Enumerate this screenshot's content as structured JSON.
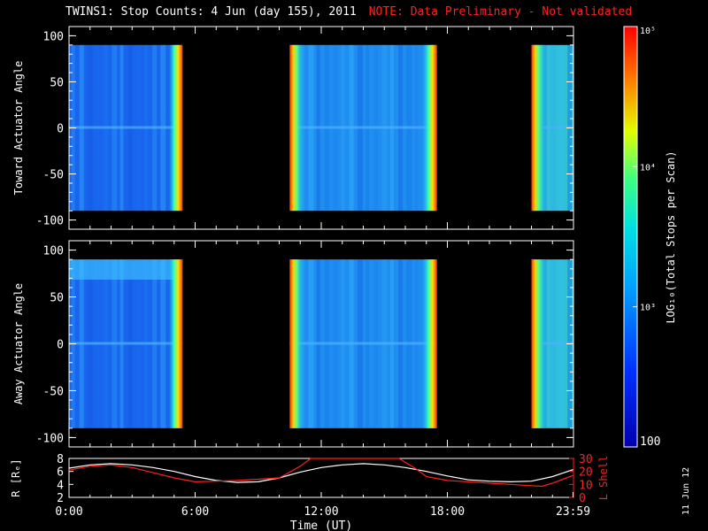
{
  "title": "TWINS1: Stop Counts:  4 Jun (day 155), 2011",
  "note": "NOTE: Data Preliminary - Not validated",
  "side_date": "11 Jun 12",
  "colors": {
    "background": "#000000",
    "axes": "#ffffff",
    "lshell": "#ff2020",
    "note": "#ff2020"
  },
  "chart_data": [
    {
      "type": "heatmap",
      "name": "toward",
      "ylabel": "Toward Actuator Angle",
      "ylim": [
        -110,
        110
      ],
      "yticks": [
        100,
        50,
        0,
        -50,
        -100
      ],
      "data_range": [
        -90,
        90
      ],
      "xlim": [
        0,
        24
      ],
      "coverage_hours": [
        [
          0,
          5.4
        ],
        [
          10.5,
          17.5
        ],
        [
          22.0,
          24.0
        ]
      ]
    },
    {
      "type": "heatmap",
      "name": "away",
      "ylabel": "Away Actuator Angle",
      "ylim": [
        -110,
        110
      ],
      "yticks": [
        100,
        50,
        0,
        -50,
        -100
      ],
      "data_range": [
        -90,
        90
      ],
      "xlim": [
        0,
        24
      ],
      "coverage_hours": [
        [
          0,
          5.4
        ],
        [
          10.5,
          17.5
        ],
        [
          22.0,
          24.0
        ]
      ]
    },
    {
      "type": "line",
      "name": "ephemeris",
      "xlabel": "Time (UT)",
      "xlim": [
        0,
        24
      ],
      "xticks": [
        "0:00",
        "6:00",
        "12:00",
        "18:00",
        "23:59"
      ],
      "xtick_hours": [
        0,
        6,
        12,
        18,
        23.98
      ],
      "left_axis": {
        "label": "R [Rₑ]",
        "ylim": [
          2,
          8
        ],
        "ticks": [
          2,
          4,
          6,
          8
        ]
      },
      "right_axis": {
        "label": "L Shell",
        "ylim": [
          0,
          30
        ],
        "ticks": [
          0,
          10,
          20,
          30
        ]
      },
      "series": [
        {
          "axis": "left",
          "color": "#ffffff",
          "x": [
            0,
            1,
            2,
            3,
            4,
            5,
            6,
            7,
            8,
            9,
            10,
            11,
            12,
            13,
            14,
            15,
            16,
            17,
            18,
            19,
            20,
            21,
            22,
            23,
            24
          ],
          "y": [
            6.5,
            7.0,
            7.2,
            7.0,
            6.6,
            6.0,
            5.2,
            4.6,
            4.3,
            4.4,
            5.0,
            5.9,
            6.6,
            7.0,
            7.2,
            7.0,
            6.6,
            6.0,
            5.3,
            4.7,
            4.5,
            4.4,
            4.5,
            5.2,
            6.3
          ]
        },
        {
          "axis": "right",
          "color": "#ff2020",
          "x": [
            0,
            1,
            2,
            3,
            4,
            5,
            6,
            7,
            8,
            9,
            10,
            11,
            11.5,
            15.7,
            16.5,
            17,
            18,
            19,
            20,
            21,
            22,
            22.5,
            23,
            24
          ],
          "y": [
            21,
            24,
            25,
            23,
            19,
            15,
            12,
            12.5,
            13,
            14,
            15,
            24,
            30,
            30,
            22,
            16,
            13,
            12,
            11,
            10,
            9,
            8.5,
            11,
            17
          ]
        }
      ]
    },
    {
      "type": "heatmap",
      "name": "colorbar",
      "label": "LOG₁₀(Total Stops per Scan)",
      "scale": "log",
      "range": [
        100,
        100000
      ],
      "ticks": [
        "100",
        "10³",
        "10⁴",
        "10⁵"
      ]
    }
  ]
}
